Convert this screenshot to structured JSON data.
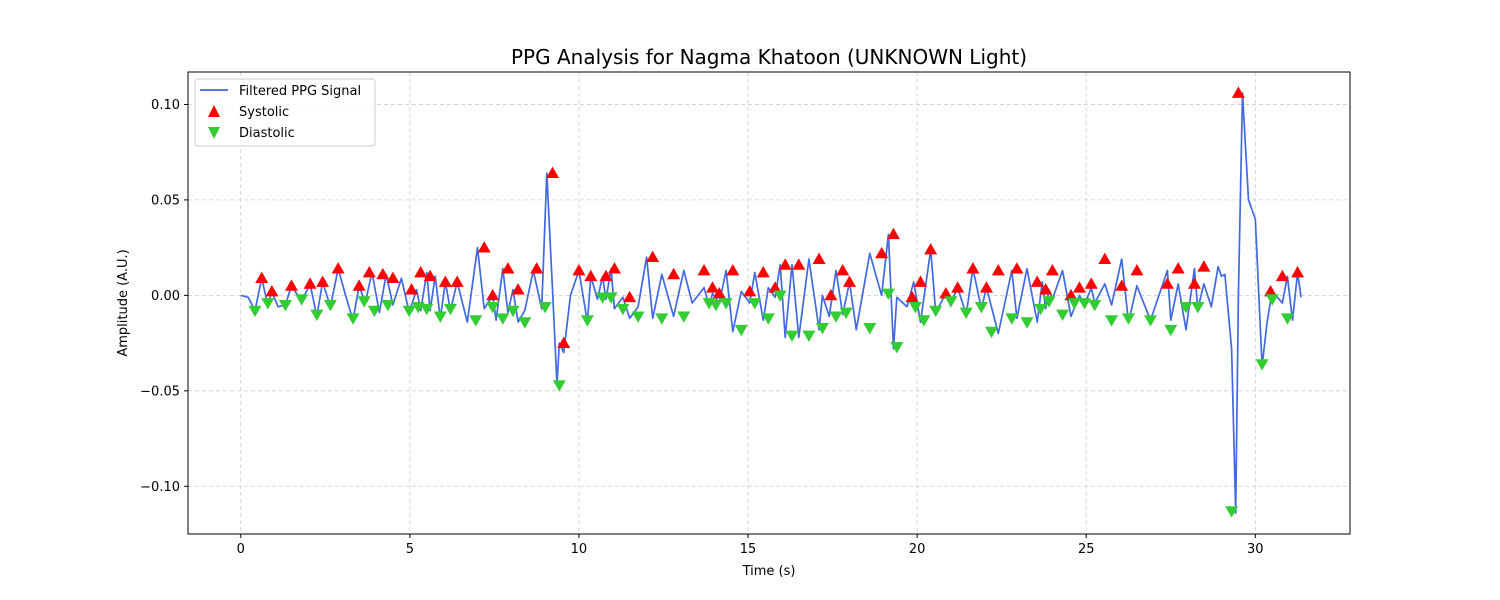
{
  "chart_data": {
    "type": "line",
    "title": "PPG Analysis for Nagma Khatoon (UNKNOWN Light)",
    "xlabel": "Time (s)",
    "ylabel": "Amplitude (A.U.)",
    "xlim": [
      -1.56,
      32.8
    ],
    "ylim": [
      -0.125,
      0.117
    ],
    "xticks": [
      0,
      5,
      10,
      15,
      20,
      25,
      30
    ],
    "yticks": [
      -0.1,
      -0.05,
      0.0,
      0.05,
      0.1
    ],
    "xtick_labels": [
      "0",
      "5",
      "10",
      "15",
      "20",
      "25",
      "30"
    ],
    "ytick_labels": [
      "−0.10",
      "−0.05",
      "0.00",
      "0.05",
      "0.10"
    ],
    "grid": true,
    "legend_position": "top-left",
    "legend": [
      "Filtered PPG Signal",
      "Systolic",
      "Diastolic"
    ],
    "colors": {
      "signal": "#4169e1",
      "systolic": "#ff0000",
      "diastolic": "#32cd32"
    },
    "series": [
      {
        "name": "Filtered PPG Signal",
        "kind": "line",
        "x": [
          0,
          0.22,
          0.42,
          0.62,
          0.8,
          0.92,
          1.1,
          1.32,
          1.5,
          1.8,
          2.05,
          2.25,
          2.42,
          2.65,
          2.88,
          3.1,
          3.32,
          3.5,
          3.68,
          3.88,
          4.1,
          4.3,
          4.5,
          4.75,
          4.98,
          5.2,
          5.32,
          5.5,
          5.6,
          5.75,
          5.9,
          6.05,
          6.2,
          6.4,
          6.7,
          7.0,
          7.2,
          7.45,
          7.55,
          7.75,
          7.9,
          8.05,
          8.2,
          8.4,
          8.65,
          8.9,
          9.05,
          9.22,
          9.35,
          9.42,
          9.55,
          9.75,
          10.0,
          10.25,
          10.35,
          10.55,
          10.7,
          10.8,
          10.95,
          11.05,
          11.3,
          11.5,
          11.75,
          12.0,
          12.18,
          12.45,
          12.8,
          13.1,
          13.35,
          13.7,
          13.85,
          13.95,
          14.15,
          14.35,
          14.55,
          14.8,
          15.05,
          15.2,
          15.45,
          15.6,
          15.8,
          15.95,
          16.1,
          16.3,
          16.5,
          16.8,
          17.1,
          17.2,
          17.4,
          17.6,
          17.8,
          18.0,
          18.2,
          18.6,
          18.95,
          19.15,
          19.3,
          19.4,
          19.7,
          19.9,
          20.1,
          20.4,
          20.55,
          20.85,
          21.0,
          21.2,
          21.45,
          21.65,
          21.9,
          22.05,
          22.4,
          22.8,
          22.95,
          23.25,
          23.55,
          23.7,
          23.8,
          23.9,
          24.0,
          24.3,
          24.55,
          24.8,
          24.95,
          25.15,
          25.25,
          25.55,
          25.75,
          26.05,
          26.25,
          26.5,
          26.9,
          27.4,
          27.5,
          27.72,
          27.95,
          28.2,
          28.3,
          28.48,
          28.7,
          28.9,
          29.0,
          29.1,
          29.3,
          29.42,
          29.5,
          29.62,
          29.8,
          30.0,
          30.2,
          30.35,
          30.5,
          30.8,
          30.95,
          31.1,
          31.25,
          31.35
        ],
        "y": [
          0.0,
          -0.001,
          -0.008,
          0.009,
          -0.005,
          0.002,
          -0.006,
          -0.005,
          0.005,
          -0.003,
          0.006,
          -0.011,
          0.007,
          -0.006,
          0.014,
          0.0,
          -0.013,
          0.005,
          -0.004,
          0.012,
          -0.009,
          0.011,
          -0.005,
          0.009,
          -0.009,
          0.003,
          -0.008,
          0.012,
          -0.008,
          0.01,
          -0.012,
          0.007,
          -0.008,
          0.007,
          -0.014,
          0.025,
          -0.007,
          0.0,
          -0.013,
          0.014,
          -0.009,
          0.003,
          -0.014,
          -0.008,
          0.013,
          -0.007,
          0.064,
          0.002,
          -0.047,
          -0.025,
          -0.03,
          0.0,
          0.013,
          -0.014,
          0.01,
          -0.002,
          0.01,
          -0.002,
          0.014,
          -0.007,
          -0.001,
          -0.012,
          -0.006,
          0.02,
          -0.012,
          0.011,
          -0.011,
          0.013,
          -0.004,
          0.004,
          -0.006,
          0.001,
          -0.004,
          0.013,
          -0.019,
          0.002,
          -0.004,
          0.012,
          -0.013,
          0.004,
          -0.001,
          0.016,
          -0.022,
          0.016,
          -0.022,
          0.019,
          -0.018,
          0.0,
          -0.011,
          0.013,
          -0.01,
          0.007,
          -0.018,
          0.022,
          0.0,
          0.032,
          -0.028,
          -0.001,
          -0.006,
          0.007,
          -0.014,
          0.024,
          -0.009,
          0.001,
          -0.004,
          0.004,
          -0.01,
          0.014,
          -0.007,
          0.004,
          -0.02,
          0.013,
          -0.012,
          0.014,
          -0.014,
          0.007,
          -0.007,
          0.003,
          -0.002,
          0.013,
          -0.011,
          0.0,
          -0.005,
          0.004,
          -0.004,
          0.006,
          -0.005,
          0.019,
          -0.014,
          0.005,
          -0.013,
          0.013,
          -0.013,
          0.006,
          -0.018,
          0.014,
          -0.007,
          0.006,
          -0.006,
          0.015,
          0.01,
          0.011,
          -0.028,
          -0.114,
          0.0,
          0.106,
          0.05,
          0.04,
          -0.037,
          -0.014,
          0.002,
          -0.004,
          0.01,
          -0.013,
          0.012,
          -0.001
        ],
        "color": "#4169e1"
      },
      {
        "name": "Systolic",
        "kind": "scatter",
        "marker": "triangle-up",
        "x": [
          0.62,
          0.92,
          1.5,
          2.05,
          2.42,
          2.88,
          3.5,
          3.8,
          4.2,
          4.5,
          5.05,
          5.32,
          5.6,
          6.05,
          6.4,
          7.2,
          7.45,
          7.9,
          8.2,
          8.75,
          9.22,
          9.55,
          10.0,
          10.35,
          10.8,
          11.05,
          11.5,
          12.18,
          12.8,
          13.7,
          13.95,
          14.15,
          14.55,
          15.05,
          15.45,
          15.8,
          16.1,
          16.5,
          17.1,
          17.45,
          17.8,
          18.0,
          18.95,
          19.3,
          19.85,
          20.1,
          20.4,
          20.85,
          21.2,
          21.65,
          22.05,
          22.4,
          22.95,
          23.55,
          23.8,
          24.0,
          24.55,
          24.8,
          25.15,
          25.55,
          26.05,
          26.5,
          27.4,
          27.72,
          28.2,
          28.48,
          29.5,
          30.45,
          30.8,
          31.25
        ],
        "y": [
          0.009,
          0.002,
          0.005,
          0.006,
          0.007,
          0.014,
          0.005,
          0.012,
          0.011,
          0.009,
          0.003,
          0.012,
          0.01,
          0.007,
          0.007,
          0.025,
          0.0,
          0.014,
          0.003,
          0.014,
          0.064,
          -0.025,
          0.013,
          0.01,
          0.01,
          0.014,
          -0.001,
          0.02,
          0.011,
          0.013,
          0.004,
          0.001,
          0.013,
          0.002,
          0.012,
          0.004,
          0.016,
          0.016,
          0.019,
          0.0,
          0.013,
          0.007,
          0.022,
          0.032,
          -0.001,
          0.007,
          0.024,
          0.001,
          0.004,
          0.014,
          0.004,
          0.013,
          0.014,
          0.007,
          0.003,
          0.013,
          0.0,
          0.004,
          0.006,
          0.019,
          0.005,
          0.013,
          0.006,
          0.014,
          0.006,
          0.015,
          0.106,
          0.002,
          0.01,
          0.012
        ],
        "color": "#ff0000"
      },
      {
        "name": "Diastolic",
        "kind": "scatter",
        "marker": "triangle-down",
        "x": [
          0.42,
          0.8,
          1.32,
          1.8,
          2.25,
          2.65,
          3.32,
          3.65,
          3.95,
          4.35,
          4.98,
          5.25,
          5.5,
          5.9,
          6.2,
          6.95,
          7.45,
          7.75,
          8.05,
          8.4,
          9.0,
          9.42,
          10.25,
          10.7,
          10.95,
          11.3,
          11.75,
          12.45,
          13.1,
          13.85,
          14.05,
          14.35,
          14.8,
          15.2,
          15.6,
          15.95,
          16.3,
          16.8,
          17.2,
          17.6,
          17.9,
          18.6,
          19.15,
          19.4,
          19.95,
          20.2,
          20.55,
          21.0,
          21.45,
          21.9,
          22.2,
          22.8,
          23.25,
          23.65,
          23.9,
          24.3,
          24.65,
          24.95,
          25.25,
          25.75,
          26.25,
          26.9,
          27.5,
          27.95,
          28.3,
          29.3,
          30.2,
          30.5,
          30.95
        ],
        "y": [
          -0.008,
          -0.004,
          -0.005,
          -0.002,
          -0.01,
          -0.005,
          -0.012,
          -0.003,
          -0.008,
          -0.005,
          -0.008,
          -0.006,
          -0.007,
          -0.011,
          -0.007,
          -0.013,
          -0.006,
          -0.012,
          -0.008,
          -0.014,
          -0.006,
          -0.047,
          -0.013,
          -0.001,
          -0.001,
          -0.007,
          -0.011,
          -0.012,
          -0.011,
          -0.004,
          -0.005,
          -0.004,
          -0.018,
          -0.004,
          -0.012,
          0.0,
          -0.021,
          -0.021,
          -0.017,
          -0.011,
          -0.009,
          -0.017,
          0.001,
          -0.027,
          -0.006,
          -0.013,
          -0.008,
          -0.003,
          -0.009,
          -0.006,
          -0.019,
          -0.012,
          -0.014,
          -0.007,
          -0.003,
          -0.01,
          -0.004,
          -0.004,
          -0.005,
          -0.013,
          -0.012,
          -0.013,
          -0.018,
          -0.006,
          -0.006,
          -0.113,
          -0.036,
          -0.002,
          -0.012
        ],
        "color": "#32cd32"
      }
    ]
  }
}
